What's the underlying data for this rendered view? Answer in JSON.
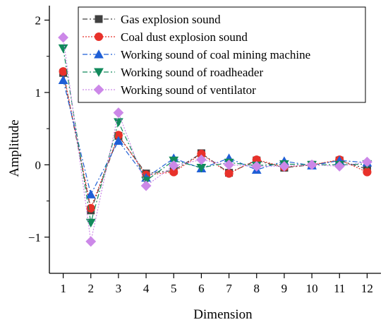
{
  "chart_data": {
    "type": "line",
    "xlabel": "Dimension",
    "ylabel": "Amplitude",
    "xlim": [
      0.5,
      12.5
    ],
    "ylim": [
      -1.5,
      2.2
    ],
    "x_ticks": [
      1,
      2,
      3,
      4,
      5,
      6,
      7,
      8,
      9,
      10,
      11,
      12
    ],
    "x_tick_labels": [
      "1",
      "2",
      "3",
      "4",
      "5",
      "6",
      "7",
      "8",
      "9",
      "10",
      "11",
      "12"
    ],
    "y_ticks": [
      -1,
      0,
      1,
      2
    ],
    "y_tick_labels": [
      "−1",
      "0",
      "1",
      "2"
    ],
    "grid": false,
    "legend_position": "top-right",
    "x": [
      1,
      2,
      3,
      4,
      5,
      6,
      7,
      8,
      9,
      10,
      11,
      12
    ],
    "series": [
      {
        "name": "Gas explosion sound",
        "values": [
          1.27,
          -0.63,
          0.4,
          -0.12,
          -0.08,
          0.16,
          -0.11,
          0.06,
          -0.04,
          0.0,
          0.06,
          -0.06
        ],
        "color": "#404040",
        "line_style": "dashdot",
        "marker": "square"
      },
      {
        "name": "Coal dust explosion sound",
        "values": [
          1.29,
          -0.6,
          0.41,
          -0.14,
          -0.1,
          0.15,
          -0.12,
          0.07,
          -0.03,
          0.0,
          0.07,
          -0.1
        ],
        "color": "#e8312a",
        "line_style": "dotted",
        "marker": "circle"
      },
      {
        "name": "Working sound of coal mining machine",
        "values": [
          1.17,
          -0.41,
          0.33,
          -0.18,
          0.09,
          -0.05,
          0.09,
          -0.07,
          0.05,
          -0.01,
          0.06,
          0.03
        ],
        "color": "#1f5fd6",
        "line_style": "dashdot",
        "marker": "triangle-up"
      },
      {
        "name": "Working sound of roadheader",
        "values": [
          1.61,
          -0.8,
          0.59,
          -0.22,
          0.06,
          -0.04,
          0.03,
          -0.01,
          0.01,
          0.0,
          0.0,
          0.01
        ],
        "color": "#128a5c",
        "line_style": "dashdot",
        "marker": "triangle-down"
      },
      {
        "name": "Working sound of ventilator",
        "values": [
          1.76,
          -1.06,
          0.72,
          -0.29,
          -0.01,
          0.07,
          0.0,
          -0.02,
          -0.02,
          0.0,
          -0.02,
          0.04
        ],
        "color": "#cc88e8",
        "line_style": "dotted",
        "marker": "diamond"
      }
    ]
  }
}
